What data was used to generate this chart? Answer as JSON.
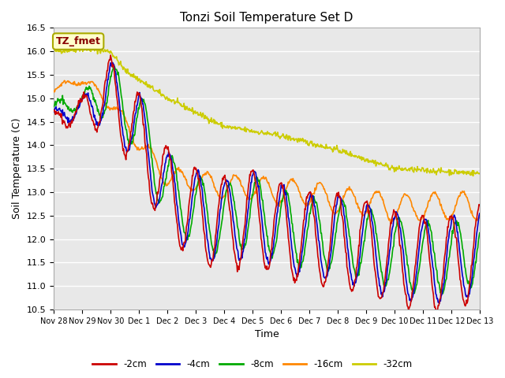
{
  "title": "Tonzi Soil Temperature Set D",
  "xlabel": "Time",
  "ylabel": "Soil Temperature (C)",
  "ylim": [
    10.5,
    16.5
  ],
  "annotation_text": "TZ_fmet",
  "annotation_bg": "#ffffcc",
  "annotation_border": "#aaaa00",
  "annotation_text_color": "#880000",
  "tick_labels": [
    "Nov 28",
    "Nov 29",
    "Nov 30",
    "Dec 1",
    "Dec 2",
    "Dec 3",
    "Dec 4",
    "Dec 5",
    "Dec 6",
    "Dec 7",
    "Dec 8",
    "Dec 9",
    "Dec 10",
    "Dec 11",
    "Dec 12",
    "Dec 13"
  ],
  "legend_labels": [
    "-2cm",
    "-4cm",
    "-8cm",
    "-16cm",
    "-32cm"
  ],
  "legend_colors": [
    "#cc0000",
    "#0000cc",
    "#00aa00",
    "#ff8800",
    "#cccc00"
  ],
  "line_width": 1.2,
  "yticks": [
    10.5,
    11.0,
    11.5,
    12.0,
    12.5,
    13.0,
    13.5,
    14.0,
    14.5,
    15.0,
    15.5,
    16.0,
    16.5
  ],
  "grid_color": "#ffffff",
  "plot_bg": "#e8e8e8"
}
